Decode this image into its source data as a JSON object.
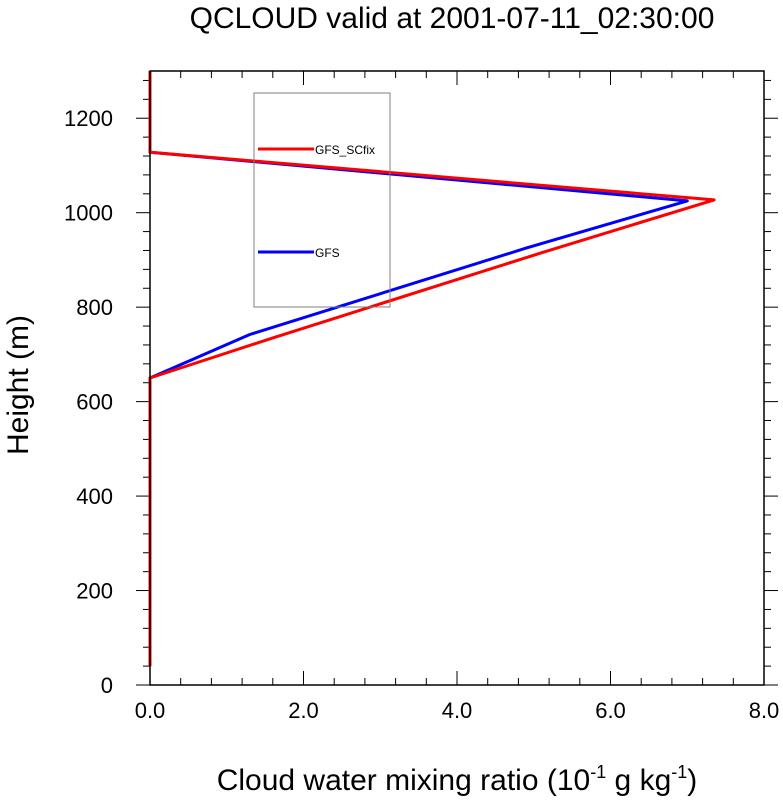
{
  "chart_data": {
    "type": "line",
    "title": "QCLOUD valid at 2001-07-11_02:30:00",
    "xlabel": {
      "main": "Cloud water mixing ratio (10",
      "sup1": "-1",
      "mid": " g kg",
      "sup2": "-1",
      "end": ")"
    },
    "ylabel": "Height (m)",
    "xlim": [
      0,
      8
    ],
    "ylim": [
      0,
      1300
    ],
    "xticks": [
      0,
      2,
      4,
      6,
      8
    ],
    "xtick_labels": [
      "0.0",
      "2.0",
      "4.0",
      "6.0",
      "8.0"
    ],
    "yticks": [
      0,
      200,
      400,
      600,
      800,
      1000,
      1200
    ],
    "ytick_labels": [
      "0",
      "200",
      "400",
      "600",
      "800",
      "1000",
      "1200"
    ],
    "grid": false,
    "legend": "top-left inside box",
    "series": [
      {
        "name": "GFS",
        "color": "#0000ff",
        "points": [
          [
            0,
            40
          ],
          [
            0,
            650
          ],
          [
            1.3,
            742
          ],
          [
            4.9,
            925
          ],
          [
            7.0,
            1025
          ],
          [
            0,
            1128
          ],
          [
            0,
            1300
          ]
        ]
      },
      {
        "name": "GFS_SCfix",
        "color": "#ff0000",
        "points": [
          [
            0,
            40
          ],
          [
            0,
            650
          ],
          [
            1.6,
            735
          ],
          [
            5.1,
            915
          ],
          [
            7.35,
            1027
          ],
          [
            0,
            1128
          ],
          [
            0,
            1300
          ]
        ]
      }
    ]
  }
}
